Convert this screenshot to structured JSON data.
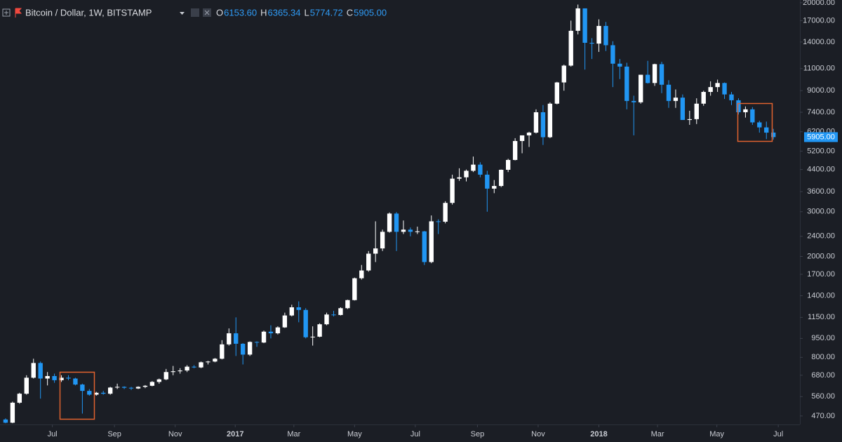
{
  "header": {
    "symbol": "Bitcoin / Dollar, 1W, BITSTAMP",
    "ohlc": [
      {
        "key": "O",
        "value": "6153.60"
      },
      {
        "key": "H",
        "value": "6365.34"
      },
      {
        "key": "L",
        "value": "5774.72"
      },
      {
        "key": "C",
        "value": "5905.00"
      }
    ]
  },
  "chart_data": {
    "type": "candlestick",
    "log_scale": true,
    "grid": false,
    "up_color": "#ffffff",
    "down_color": "#2196f3",
    "open": [
      455,
      442,
      530,
      575,
      665,
      760,
      660,
      675,
      650,
      665,
      660,
      625,
      590,
      570,
      580,
      575,
      608,
      612,
      607,
      603,
      612,
      618,
      640,
      655,
      700,
      705,
      710,
      735,
      730,
      765,
      770,
      790,
      900,
      995,
      905,
      820,
      920,
      915,
      1010,
      995,
      1050,
      1170,
      1260,
      1230,
      960,
      965,
      1080,
      1180,
      1175,
      1250,
      1345,
      1640,
      1760,
      2050,
      2150,
      2500,
      2950,
      2500,
      2550,
      2500,
      2510,
      1900,
      2750,
      2740,
      3250,
      4050,
      4100,
      4350,
      4600,
      4200,
      3700,
      3790,
      4390,
      4800,
      5700,
      6000,
      6150,
      7400,
      5900,
      8000,
      9700,
      11300,
      15500,
      19000,
      13900,
      13800,
      16200,
      13600,
      11500,
      11200,
      8200,
      8100,
      10400,
      9650,
      11450,
      9500,
      8200,
      8450,
      6900,
      6950,
      8000,
      8900,
      9300,
      9650,
      8700,
      8250,
      7400,
      7600,
      6750,
      6450,
      6153.6
    ],
    "high": [
      460,
      535,
      580,
      680,
      790,
      770,
      700,
      690,
      680,
      680,
      665,
      630,
      600,
      585,
      590,
      612,
      630,
      615,
      612,
      615,
      622,
      645,
      660,
      720,
      740,
      725,
      745,
      745,
      770,
      775,
      795,
      935,
      1040,
      1150,
      910,
      925,
      925,
      1020,
      1070,
      1060,
      1200,
      1290,
      1330,
      1250,
      1060,
      1090,
      1200,
      1220,
      1260,
      1350,
      1650,
      1850,
      2100,
      2750,
      2550,
      2980,
      2990,
      2770,
      2600,
      2620,
      2520,
      2900,
      2800,
      3300,
      4200,
      4450,
      4400,
      4950,
      4700,
      4350,
      4000,
      4400,
      4850,
      5850,
      6000,
      6200,
      7600,
      7900,
      8100,
      9750,
      11400,
      17000,
      19666,
      19000,
      14500,
      17200,
      16800,
      14100,
      12000,
      11600,
      8600,
      10400,
      11800,
      11500,
      11700,
      9900,
      9100,
      8700,
      7500,
      8400,
      9000,
      9800,
      9950,
      9700,
      8900,
      8400,
      7800,
      7750,
      6850,
      6800,
      6365.34
    ],
    "low": [
      440,
      440,
      525,
      570,
      660,
      550,
      620,
      635,
      640,
      650,
      620,
      480,
      565,
      565,
      570,
      570,
      600,
      600,
      595,
      600,
      605,
      615,
      630,
      650,
      680,
      690,
      700,
      725,
      725,
      750,
      765,
      785,
      890,
      810,
      750,
      810,
      880,
      910,
      950,
      985,
      1045,
      1160,
      1100,
      950,
      890,
      960,
      1070,
      1160,
      1170,
      1240,
      1340,
      1620,
      1740,
      1900,
      2100,
      2480,
      2100,
      2450,
      2400,
      2450,
      1850,
      1880,
      2450,
      2700,
      3200,
      3970,
      3950,
      4300,
      4100,
      3000,
      3550,
      3750,
      4300,
      4780,
      5100,
      5400,
      6100,
      5500,
      5850,
      7950,
      9000,
      11200,
      15000,
      10900,
      12000,
      12800,
      12900,
      9300,
      10000,
      7600,
      6000,
      8000,
      9600,
      9400,
      8800,
      7700,
      7700,
      6900,
      6600,
      6650,
      7850,
      8600,
      8900,
      8350,
      7900,
      7250,
      7050,
      6600,
      6150,
      5800,
      5774.72
    ],
    "close": [
      442,
      530,
      575,
      665,
      760,
      660,
      675,
      650,
      665,
      660,
      625,
      590,
      570,
      580,
      575,
      608,
      612,
      607,
      603,
      612,
      618,
      640,
      655,
      700,
      705,
      710,
      735,
      730,
      765,
      770,
      790,
      900,
      995,
      905,
      820,
      920,
      915,
      1010,
      995,
      1050,
      1170,
      1260,
      1230,
      960,
      965,
      1080,
      1180,
      1175,
      1250,
      1345,
      1640,
      1760,
      2050,
      2150,
      2500,
      2950,
      2500,
      2550,
      2500,
      2510,
      1900,
      2750,
      2740,
      3250,
      4050,
      4100,
      4350,
      4600,
      4200,
      3700,
      3790,
      4390,
      4800,
      5700,
      6000,
      6150,
      7400,
      5900,
      8000,
      9700,
      11300,
      15500,
      19000,
      13900,
      13800,
      16200,
      13600,
      11500,
      11200,
      8200,
      8100,
      10400,
      9650,
      11450,
      9500,
      8200,
      8450,
      6900,
      6950,
      8000,
      8900,
      9300,
      9650,
      8700,
      8250,
      7400,
      7600,
      6750,
      6450,
      6150,
      5905
    ],
    "last_label": {
      "value": 5905,
      "label": "5905.00"
    },
    "xlim": [
      -0.8,
      113.8
    ],
    "ylim": [
      435,
      20500
    ],
    "xticks": [
      {
        "value": 6.7,
        "label": "Jul"
      },
      {
        "value": 15.6,
        "label": "Sep"
      },
      {
        "value": 24.3,
        "label": "Nov"
      },
      {
        "value": 32.9,
        "label": "2017"
      },
      {
        "value": 41.3,
        "label": "Mar"
      },
      {
        "value": 50.0,
        "label": "May"
      },
      {
        "value": 58.7,
        "label": "Jul"
      },
      {
        "value": 67.6,
        "label": "Sep"
      },
      {
        "value": 76.3,
        "label": "Nov"
      },
      {
        "value": 85.0,
        "label": "2018"
      },
      {
        "value": 93.4,
        "label": "Mar"
      },
      {
        "value": 101.9,
        "label": "May"
      },
      {
        "value": 110.7,
        "label": "Jul"
      }
    ],
    "yticks": [
      {
        "value": 470,
        "label": "470.00"
      },
      {
        "value": 560,
        "label": "560.00"
      },
      {
        "value": 680,
        "label": "680.00"
      },
      {
        "value": 800,
        "label": "800.00"
      },
      {
        "value": 950,
        "label": "950.00"
      },
      {
        "value": 1150,
        "label": "1150.00"
      },
      {
        "value": 1400,
        "label": "1400.00"
      },
      {
        "value": 1700,
        "label": "1700.00"
      },
      {
        "value": 2000,
        "label": "2000.00"
      },
      {
        "value": 2400,
        "label": "2400.00"
      },
      {
        "value": 3000,
        "label": "3000.00"
      },
      {
        "value": 3600,
        "label": "3600.00"
      },
      {
        "value": 4400,
        "label": "4400.00"
      },
      {
        "value": 5200,
        "label": "5200.00"
      },
      {
        "value": 6200,
        "label": "6200.00"
      },
      {
        "value": 7400,
        "label": "7400.00"
      },
      {
        "value": 9000,
        "label": "9000.00"
      },
      {
        "value": 11000,
        "label": "11000.00"
      },
      {
        "value": 14000,
        "label": "14000.00"
      },
      {
        "value": 17000,
        "label": "17000.00"
      },
      {
        "value": 20000,
        "label": "20000.00"
      }
    ]
  }
}
